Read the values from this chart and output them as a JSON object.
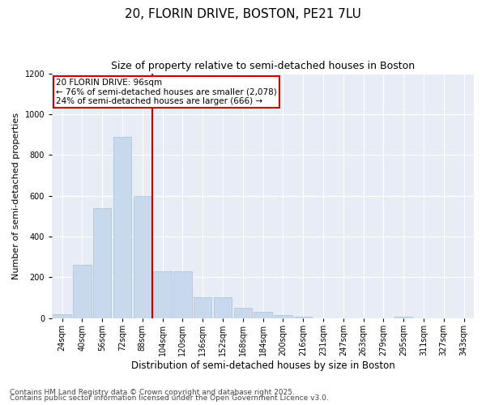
{
  "title1": "20, FLORIN DRIVE, BOSTON, PE21 7LU",
  "title2": "Size of property relative to semi-detached houses in Boston",
  "xlabel": "Distribution of semi-detached houses by size in Boston",
  "ylabel": "Number of semi-detached properties",
  "categories": [
    "24sqm",
    "40sqm",
    "56sqm",
    "72sqm",
    "88sqm",
    "104sqm",
    "120sqm",
    "136sqm",
    "152sqm",
    "168sqm",
    "184sqm",
    "200sqm",
    "216sqm",
    "231sqm",
    "247sqm",
    "263sqm",
    "279sqm",
    "295sqm",
    "311sqm",
    "327sqm",
    "343sqm"
  ],
  "values": [
    20,
    260,
    540,
    890,
    600,
    230,
    230,
    100,
    100,
    50,
    30,
    15,
    5,
    0,
    0,
    0,
    0,
    5,
    0,
    0,
    0
  ],
  "bar_color": "#c8d9ee",
  "bar_edge_color": "#aabfd8",
  "vline_color": "#cc0000",
  "annotation_text": "20 FLORIN DRIVE: 96sqm\n← 76% of semi-detached houses are smaller (2,078)\n24% of semi-detached houses are larger (666) →",
  "annotation_box_color": "#ffffff",
  "annotation_box_edge": "#cc0000",
  "ylim": [
    0,
    1200
  ],
  "yticks": [
    0,
    200,
    400,
    600,
    800,
    1000,
    1200
  ],
  "background_color": "#e8edf5",
  "footer1": "Contains HM Land Registry data © Crown copyright and database right 2025.",
  "footer2": "Contains public sector information licensed under the Open Government Licence v3.0.",
  "title1_fontsize": 11,
  "title2_fontsize": 9,
  "xlabel_fontsize": 8.5,
  "ylabel_fontsize": 8,
  "tick_fontsize": 7,
  "annotation_fontsize": 7.5,
  "footer_fontsize": 6.5
}
